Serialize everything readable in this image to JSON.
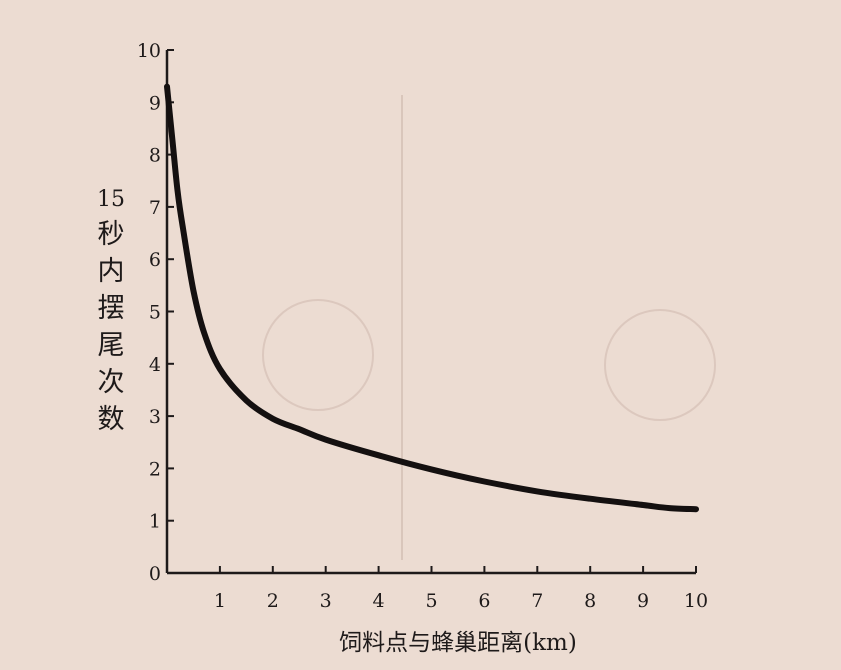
{
  "chart_data": {
    "type": "line",
    "title": "",
    "xlabel": "饲料点与蜂巢距离(km)",
    "ylabel_lines": [
      "15",
      "秒",
      "内",
      "摆",
      "尾",
      "次",
      "数"
    ],
    "xlim": [
      0,
      10
    ],
    "ylim": [
      0,
      10
    ],
    "x_ticks": [
      1,
      2,
      3,
      4,
      5,
      6,
      7,
      8,
      9,
      10
    ],
    "y_ticks": [
      0,
      1,
      2,
      3,
      4,
      5,
      6,
      7,
      8,
      9,
      10
    ],
    "grid": false,
    "series": [
      {
        "color": "#141010",
        "x": [
          0,
          0.1,
          0.2,
          0.3,
          0.5,
          0.7,
          1.0,
          1.5,
          2.0,
          2.5,
          3.0,
          4.0,
          5.0,
          6.0,
          7.0,
          8.0,
          9.0,
          9.5,
          10.0
        ],
        "y": [
          9.3,
          8.3,
          7.3,
          6.6,
          5.4,
          4.6,
          3.9,
          3.3,
          2.95,
          2.75,
          2.55,
          2.25,
          1.98,
          1.75,
          1.56,
          1.42,
          1.3,
          1.24,
          1.22
        ]
      }
    ]
  }
}
